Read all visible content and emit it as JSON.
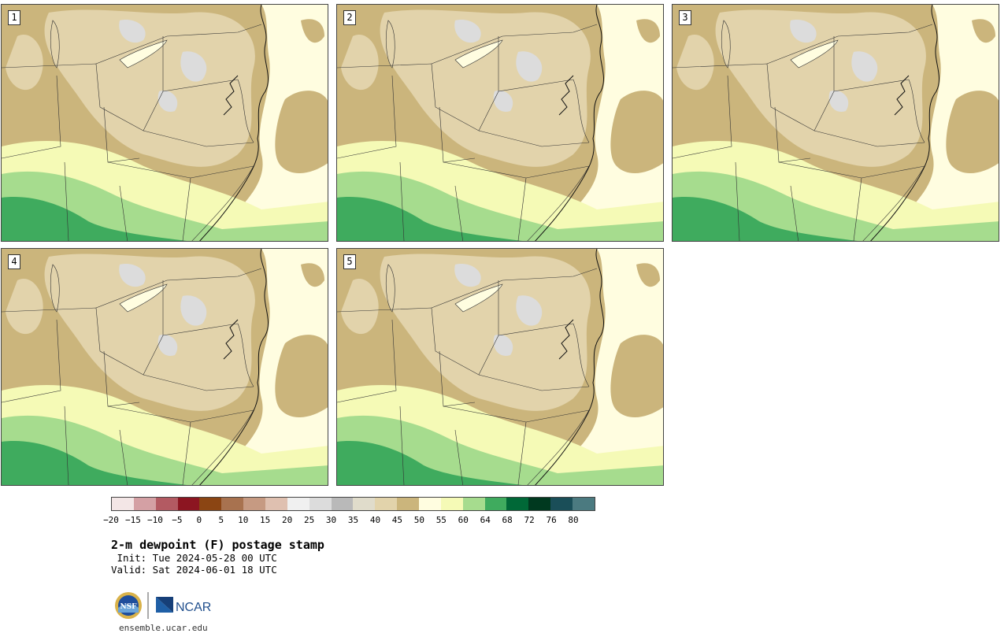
{
  "figure": {
    "title": "2-m dewpoint (F) postage stamp",
    "init": " Init: Tue 2024-05-28 00 UTC",
    "valid": "Valid: Sat 2024-06-01 18 UTC",
    "website": "ensemble.ucar.edu",
    "logos": [
      "NSF",
      "NCAR"
    ]
  },
  "members": [
    "1",
    "2",
    "3",
    "4",
    "5"
  ],
  "colorbar": {
    "ticks": [
      "−20",
      "−15",
      "−10",
      "−5",
      "0",
      "5",
      "10",
      "15",
      "20",
      "25",
      "30",
      "35",
      "40",
      "45",
      "50",
      "55",
      "60",
      "64",
      "68",
      "72",
      "76",
      "80"
    ],
    "colors": [
      "#f3e6e6",
      "#d4a0a4",
      "#b35a62",
      "#8c1521",
      "#8b4513",
      "#a8724f",
      "#c69a82",
      "#dfc0b0",
      "#f0f0f0",
      "#dcdcdc",
      "#b9b9b9",
      "#e0dccb",
      "#e2d3ab",
      "#cbb57c",
      "#fffde0",
      "#f5fab6",
      "#a6dc8e",
      "#3fab5e",
      "#006837",
      "#00391f",
      "#1a4e58",
      "#4b7a80"
    ]
  }
}
